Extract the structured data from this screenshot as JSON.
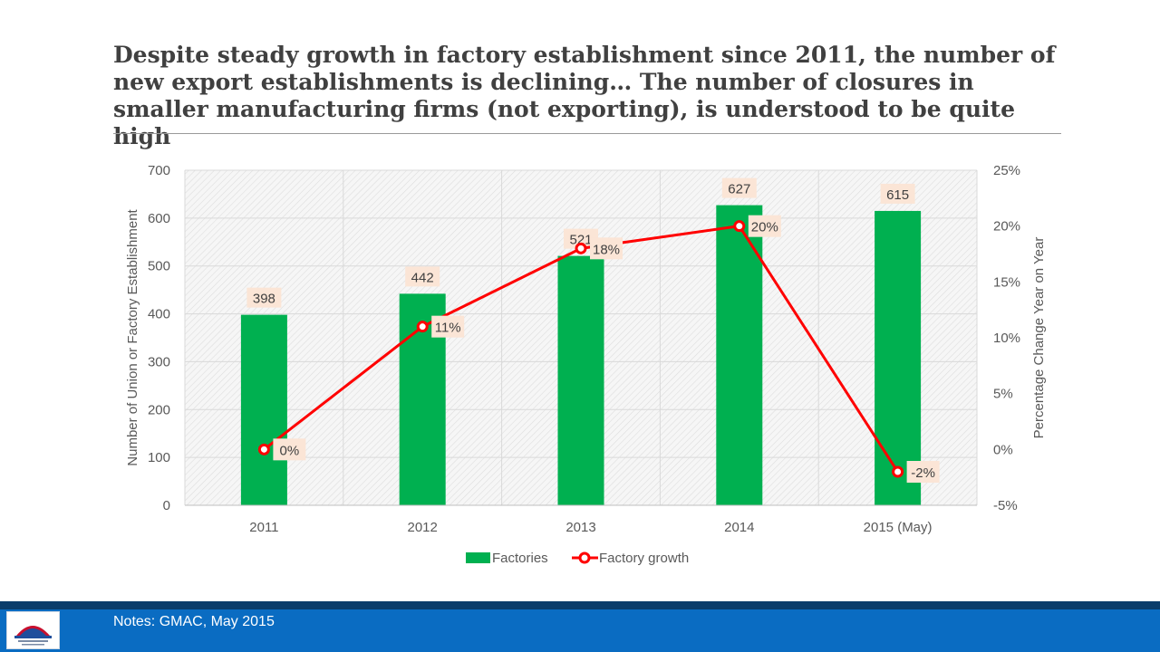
{
  "slide": {
    "title": "Despite steady growth in factory establishment since 2011, the number of new export establishments is declining… The number of closures in smaller manufacturing firms (not exporting), is understood to be quite high",
    "notes": "Notes:  GMAC, May 2015"
  },
  "colors": {
    "bar": "#00b050",
    "line": "#ff0000",
    "label_bg": "#fbe5d6",
    "footer": "#0a6cc2"
  },
  "chart_data": {
    "type": "bar",
    "categories": [
      "2011",
      "2012",
      "2013",
      "2014",
      "2015 (May)"
    ],
    "series": [
      {
        "name": "Factories",
        "type": "bar",
        "axis": "left",
        "values": [
          398,
          442,
          521,
          627,
          615
        ],
        "labels": [
          "398",
          "442",
          "521",
          "627",
          "615"
        ]
      },
      {
        "name": "Factory growth",
        "type": "line",
        "axis": "right",
        "values": [
          0,
          11,
          18,
          20,
          -2
        ],
        "labels": [
          "0%",
          "11%",
          "18%",
          "20%",
          "-2%"
        ]
      }
    ],
    "ylabel": "Number of Union or Factory Establishment",
    "y2label": "Percentage Change Year on Year",
    "ylim": [
      0,
      700
    ],
    "y2lim": [
      -5,
      25
    ],
    "yticks": [
      "0",
      "100",
      "200",
      "300",
      "400",
      "500",
      "600",
      "700"
    ],
    "y2ticks": [
      "-5%",
      "0%",
      "5%",
      "10%",
      "15%",
      "20%",
      "25%"
    ],
    "legend": "bottom",
    "grid": true
  }
}
